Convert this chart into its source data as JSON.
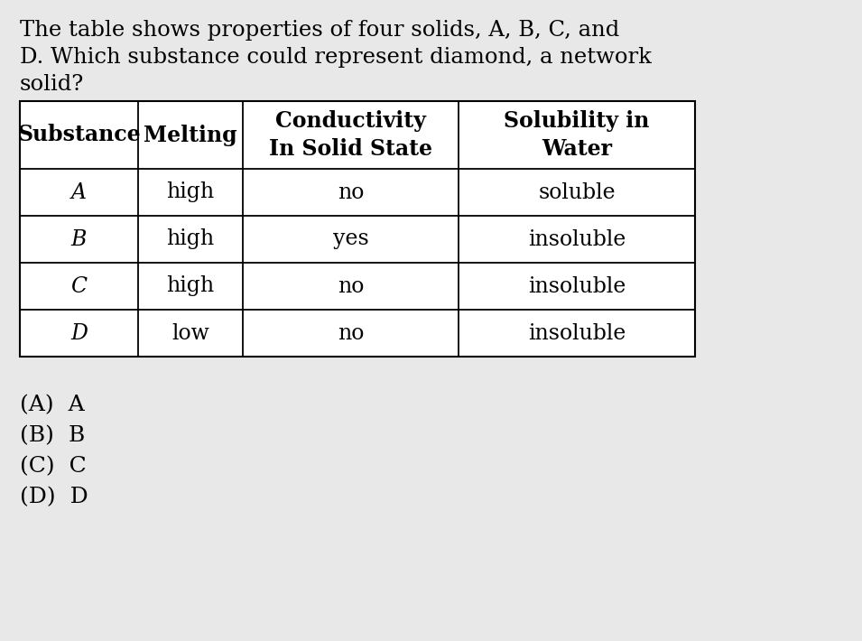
{
  "background_color": "#e8e8e8",
  "intro_text_lines": [
    "The table shows properties of four solids, A, B, C, and",
    "D. Which substance could represent diamond, a network",
    "solid?"
  ],
  "col_headers": [
    "Substance",
    "Melting",
    "Conductivity\nIn Solid State",
    "Solubility in\nWater"
  ],
  "rows": [
    [
      "A",
      "high",
      "no",
      "soluble"
    ],
    [
      "B",
      "high",
      "yes",
      "insoluble"
    ],
    [
      "C",
      "high",
      "no",
      "insoluble"
    ],
    [
      "D",
      "low",
      "no",
      "insoluble"
    ]
  ],
  "choices": [
    "(A)  A",
    "(B)  B",
    "(C)  C",
    "(D)  D"
  ],
  "intro_fontsize": 17.5,
  "table_fontsize": 17,
  "choices_fontsize": 18
}
